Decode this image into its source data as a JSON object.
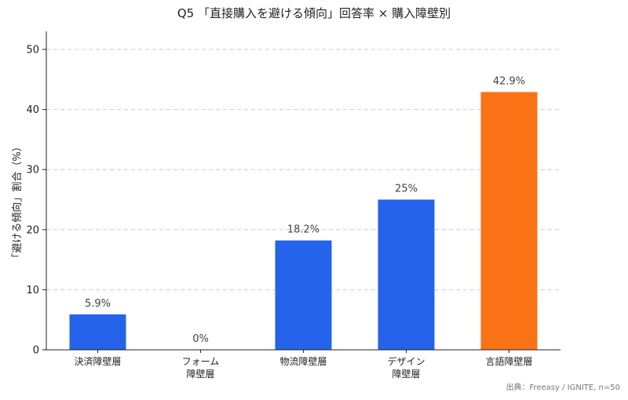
{
  "chart_data": {
    "type": "bar",
    "title": "Q5 「直接購入を避ける傾向」回答率 × 購入障壁別",
    "ylabel": "「避ける傾向」割合（%）",
    "xlabel": "",
    "categories": [
      [
        "決済障壁層"
      ],
      [
        "フォーム",
        "障壁層"
      ],
      [
        "物流障壁層"
      ],
      [
        "デザイン",
        "障壁層"
      ],
      [
        "言語障壁層"
      ]
    ],
    "values": [
      5.9,
      0,
      18.2,
      25,
      42.9
    ],
    "value_labels": [
      "5.9%",
      "0%",
      "18.2%",
      "25%",
      "42.9%"
    ],
    "bar_colors": [
      "#2563EB",
      "#2563EB",
      "#2563EB",
      "#2563EB",
      "#F97316"
    ],
    "ylim": [
      0,
      53
    ],
    "yticks": [
      0,
      10,
      20,
      30,
      40,
      50
    ],
    "grid": true,
    "source": "出典：Freeasy / IGNITE, n=50"
  }
}
